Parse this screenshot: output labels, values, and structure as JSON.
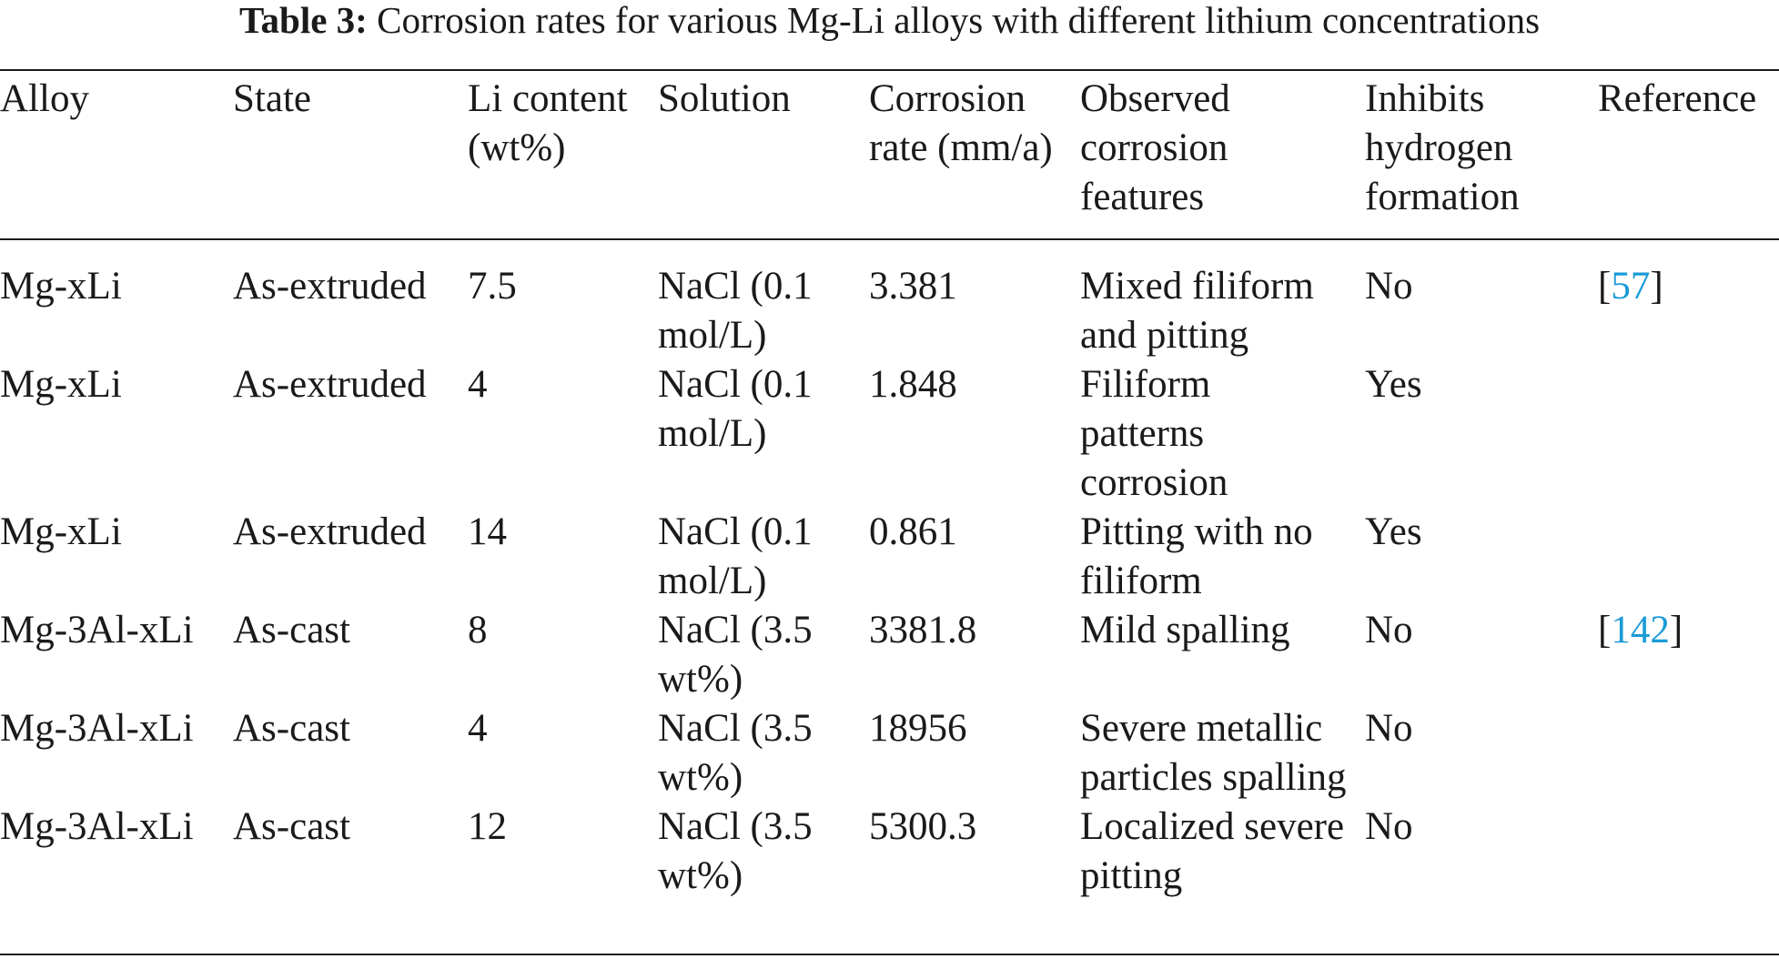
{
  "caption": {
    "label": "Table 3:",
    "text": "Corrosion rates for various Mg-Li alloys with different lithium concentrations"
  },
  "headers": {
    "alloy": "Alloy",
    "state": "State",
    "li_content": "Li content (wt%)",
    "solution": "Solution",
    "corrosion_rate": "Corrosion rate (mm/a)",
    "features": "Observed corrosion features",
    "inhibits": "Inhibits hydrogen formation",
    "reference": "Reference"
  },
  "rows": [
    {
      "alloy": "Mg-xLi",
      "state": "As-extruded",
      "li_content": "7.5",
      "solution": "NaCl (0.1 mol/L)",
      "corrosion_rate": "3.381",
      "features": "Mixed filiform and pitting",
      "inhibits": "No",
      "ref_open": "[",
      "ref_num": "57",
      "ref_close": "]"
    },
    {
      "alloy": "Mg-xLi",
      "state": "As-extruded",
      "li_content": "4",
      "solution": "NaCl (0.1 mol/L)",
      "corrosion_rate": "1.848",
      "features": "Filiform patterns corrosion",
      "inhibits": "Yes",
      "ref_open": "",
      "ref_num": "",
      "ref_close": ""
    },
    {
      "alloy": "Mg-xLi",
      "state": "As-extruded",
      "li_content": "14",
      "solution": "NaCl (0.1 mol/L)",
      "corrosion_rate": "0.861",
      "features": "Pitting with no filiform",
      "inhibits": "Yes",
      "ref_open": "",
      "ref_num": "",
      "ref_close": ""
    },
    {
      "alloy": "Mg-3Al-xLi",
      "state": "As-cast",
      "li_content": "8",
      "solution": "NaCl (3.5 wt%)",
      "corrosion_rate": "3381.8",
      "features": "Mild spalling",
      "inhibits": "No",
      "ref_open": "[",
      "ref_num": "142",
      "ref_close": "]"
    },
    {
      "alloy": "Mg-3Al-xLi",
      "state": "As-cast",
      "li_content": "4",
      "solution": "NaCl (3.5 wt%)",
      "corrosion_rate": "18956",
      "features": "Severe metallic particles spalling",
      "inhibits": "No",
      "ref_open": "",
      "ref_num": "",
      "ref_close": ""
    },
    {
      "alloy": "Mg-3Al-xLi",
      "state": "As-cast",
      "li_content": "12",
      "solution": "NaCl (3.5 wt%)",
      "corrosion_rate": "5300.3",
      "features": "Localized severe pitting",
      "inhibits": "No",
      "ref_open": "",
      "ref_num": "",
      "ref_close": ""
    }
  ],
  "colors": {
    "text": "#1a1a1a",
    "reference_link": "#1a9bd7"
  }
}
